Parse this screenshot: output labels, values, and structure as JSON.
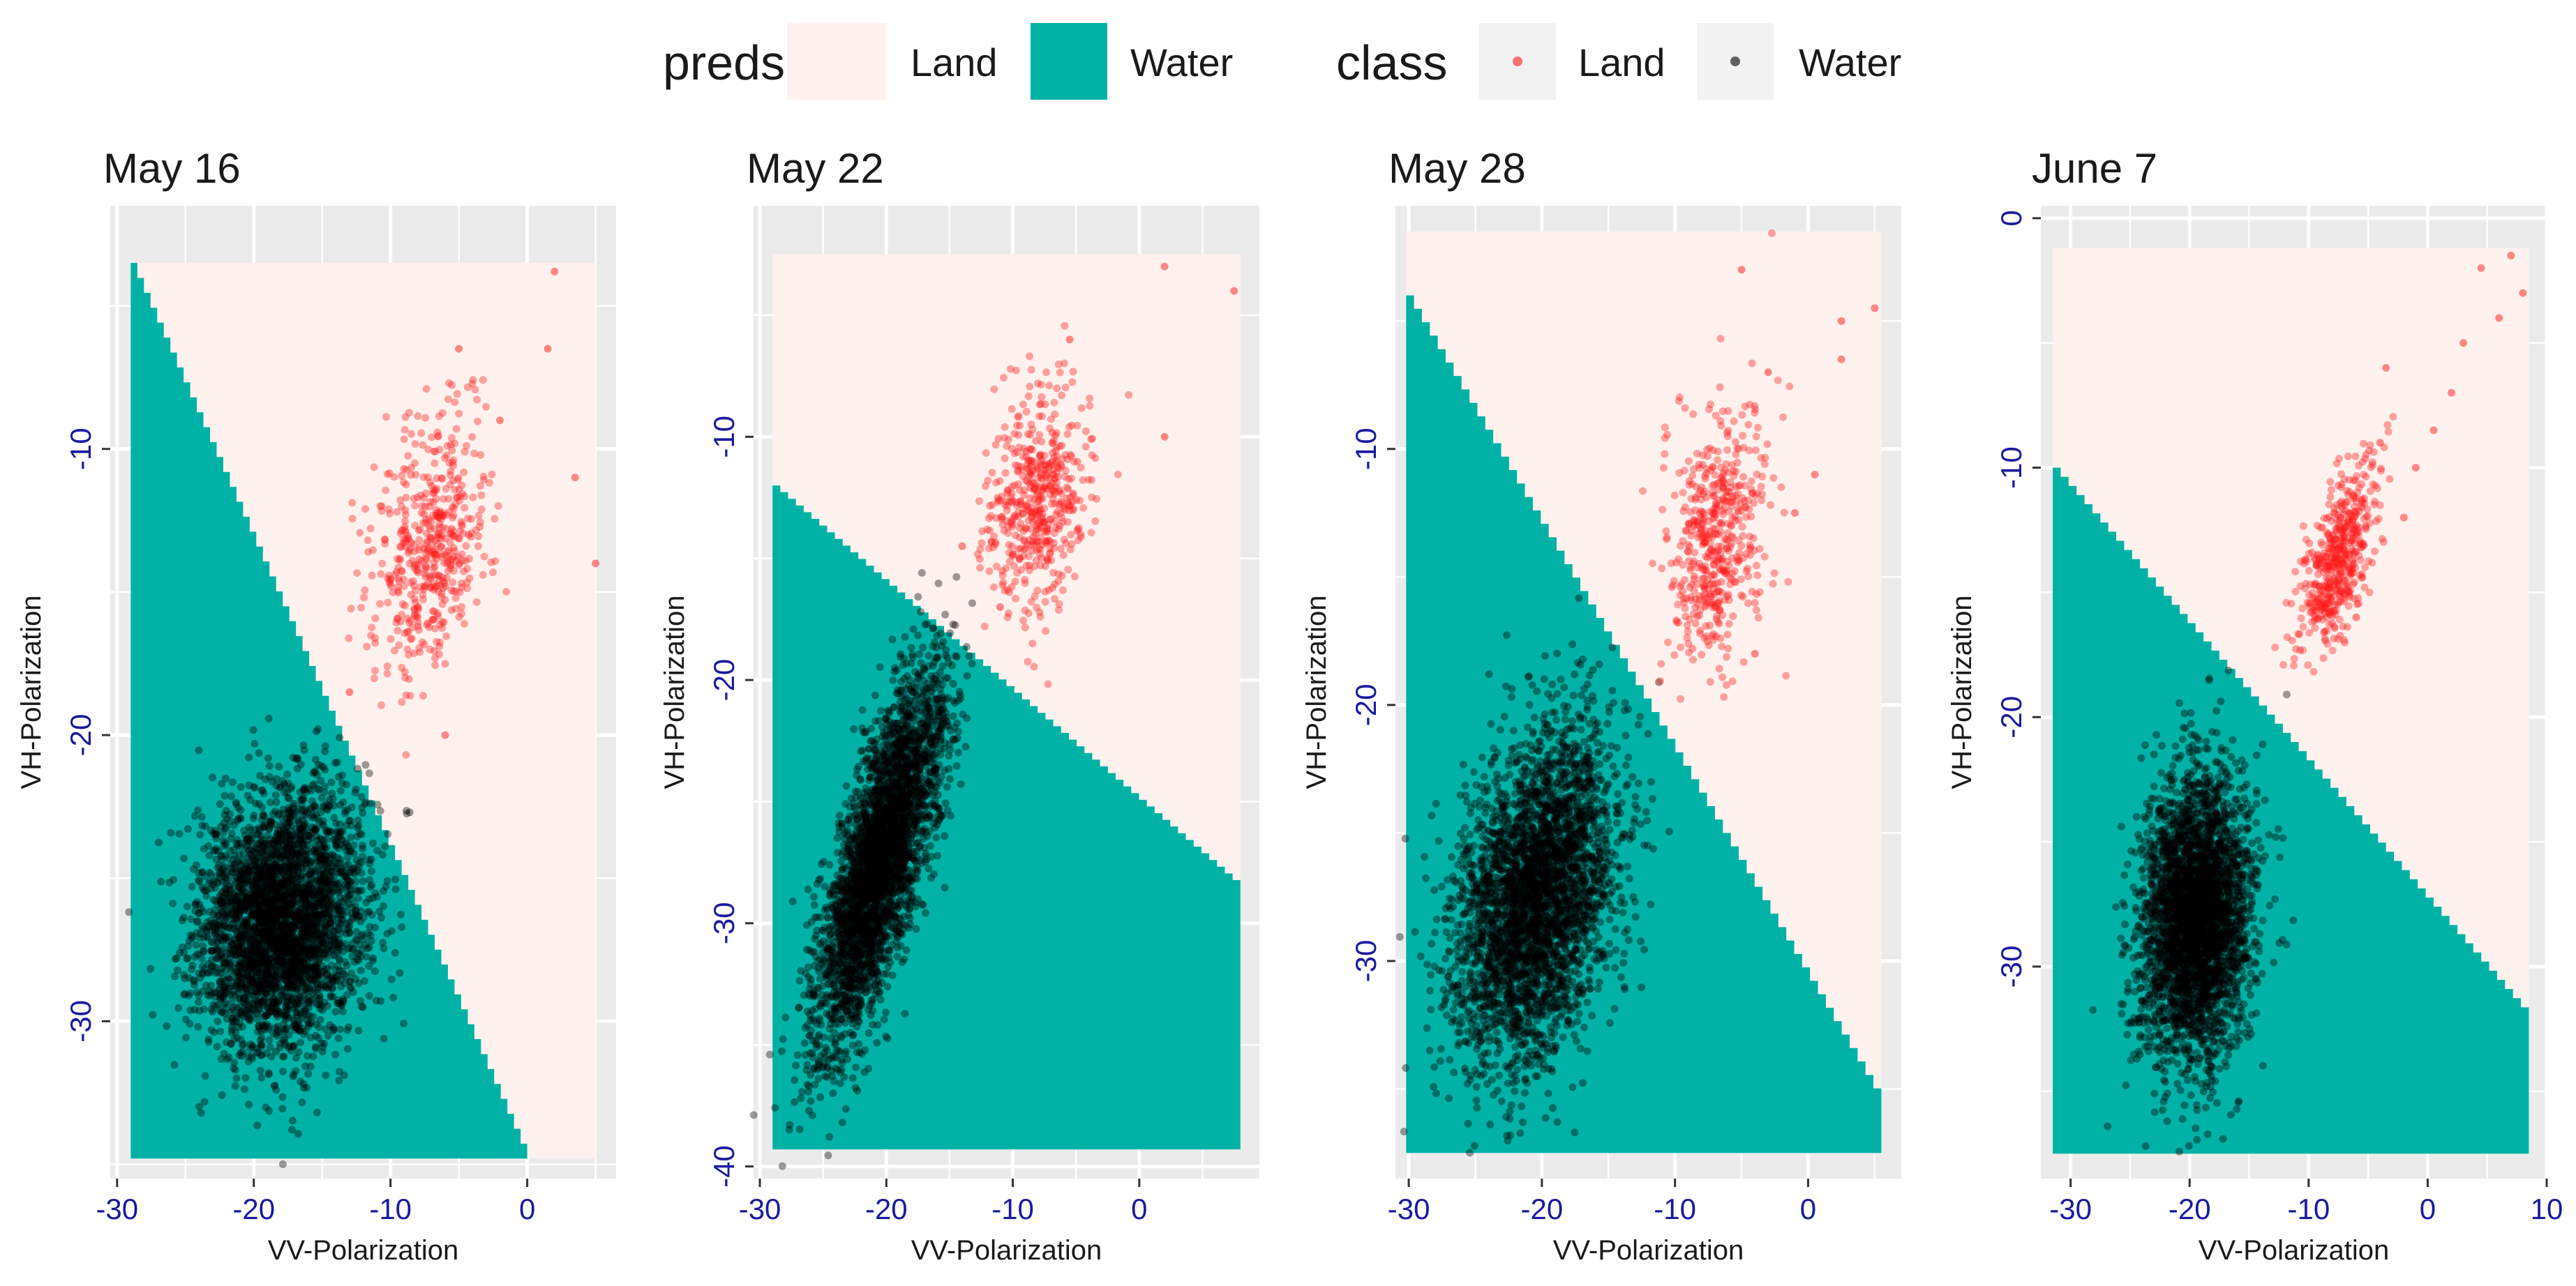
{
  "legend": {
    "preds_title": "preds",
    "preds_items": [
      {
        "label": "Land",
        "color": "#FFF2EE"
      },
      {
        "label": "Water",
        "color": "#00B2A6"
      }
    ],
    "class_title": "class",
    "class_items": [
      {
        "label": "Land",
        "color": "#FF1A1A"
      },
      {
        "label": "Water",
        "color": "#000000"
      }
    ]
  },
  "colors": {
    "panel_bg": "#EBEBEB",
    "grid": "#FFFFFF",
    "land_fill": "#FFF2EE",
    "water_fill": "#00B2A6",
    "land_point": "#FF1A1A",
    "water_point": "#000000",
    "tick_label": "#1A1AA0"
  },
  "chart_data": [
    {
      "type": "scatter",
      "title": "May 16",
      "xlabel": "VV-Polarization",
      "ylabel": "VH-Polarization",
      "xlim": [
        -30.5,
        6.5
      ],
      "ylim": [
        -35.5,
        -1.5
      ],
      "xticks": [
        -30,
        -20,
        -10,
        0
      ],
      "yticks": [
        -30,
        -20,
        -10
      ],
      "region": {
        "xmin": -29,
        "xmax": 5,
        "ymin": -34.8,
        "ymax": -3.5
      },
      "boundary": [
        [
          -29,
          -3.5
        ],
        [
          0,
          -34.8
        ]
      ],
      "land_cluster": {
        "cx": -7,
        "cy": -13.5,
        "sx": 2.2,
        "sy": 2.2,
        "rho": 0.3,
        "n": 500
      },
      "land_outliers": [
        [
          2,
          -3.8
        ],
        [
          1.5,
          -6.5
        ],
        [
          3.5,
          -11
        ],
        [
          5,
          -14
        ],
        [
          -2,
          -9
        ],
        [
          -5,
          -6.5
        ],
        [
          -6,
          -20
        ],
        [
          -13,
          -18.5
        ]
      ],
      "water_cluster": {
        "cx": -18,
        "cy": -26.5,
        "sx": 3.0,
        "sy": 2.2,
        "rho": 0.1,
        "n": 3500
      }
    },
    {
      "type": "scatter",
      "title": "May 22",
      "xlabel": "VV-Polarization",
      "ylabel": "VH-Polarization",
      "xlim": [
        -30.5,
        9.5
      ],
      "ylim": [
        -40.5,
        -0.5
      ],
      "xticks": [
        -30,
        -20,
        -10,
        0
      ],
      "yticks": [
        -40,
        -30,
        -20,
        -10
      ],
      "region": {
        "xmin": -29,
        "xmax": 8,
        "ymin": -39.3,
        "ymax": -2.5
      },
      "boundary": [
        [
          -29,
          -12
        ],
        [
          8,
          -28.5
        ]
      ],
      "land_cluster": {
        "cx": -8,
        "cy": -12.5,
        "sx": 2.0,
        "sy": 2.2,
        "rho": 0.2,
        "n": 500
      },
      "land_outliers": [
        [
          2,
          -3
        ],
        [
          7.5,
          -4
        ],
        [
          -5.5,
          -6
        ],
        [
          2,
          -10
        ],
        [
          -14,
          -14.5
        ],
        [
          -11,
          -17
        ]
      ],
      "water_cluster": {
        "cx": -20.5,
        "cy": -27.5,
        "sx": 2.5,
        "sy": 3.8,
        "rho": 0.75,
        "n": 3500
      }
    },
    {
      "type": "scatter",
      "title": "May 28",
      "xlabel": "VV-Polarization",
      "ylabel": "VH-Polarization",
      "xlim": [
        -31,
        7
      ],
      "ylim": [
        -38.5,
        -0.5
      ],
      "xticks": [
        -30,
        -20,
        -10,
        0
      ],
      "yticks": [
        -30,
        -20,
        -10
      ],
      "region": {
        "xmin": -30.2,
        "xmax": 5.5,
        "ymin": -37.5,
        "ymax": -1.5
      },
      "boundary": [
        [
          -30.2,
          -4
        ],
        [
          5.5,
          -35.5
        ]
      ],
      "land_cluster": {
        "cx": -7,
        "cy": -13.5,
        "sx": 1.8,
        "sy": 2.5,
        "rho": 0.2,
        "n": 500
      },
      "land_outliers": [
        [
          -5,
          -3
        ],
        [
          2.5,
          -5
        ],
        [
          5,
          -4.5
        ],
        [
          2.5,
          -6.5
        ],
        [
          -3,
          -7
        ],
        [
          0.5,
          -11
        ],
        [
          -1,
          -12.5
        ],
        [
          -4,
          -18
        ]
      ],
      "water_cluster": {
        "cx": -20.5,
        "cy": -27.5,
        "sx": 3.0,
        "sy": 3.2,
        "rho": 0.3,
        "n": 3500
      }
    },
    {
      "type": "scatter",
      "title": "June 7",
      "xlabel": "VV-Polarization",
      "ylabel": "VH-Polarization",
      "xlim": [
        -32.5,
        10
      ],
      "ylim": [
        -38.5,
        0.5
      ],
      "xticks": [
        -30,
        -20,
        -10,
        0,
        10
      ],
      "yticks": [
        -30,
        -20,
        -10,
        0
      ],
      "region": {
        "xmin": -31.5,
        "xmax": 8.5,
        "ymin": -37.5,
        "ymax": -1.2
      },
      "boundary": [
        [
          -31.5,
          -10
        ],
        [
          8.5,
          -32
        ]
      ],
      "land_cluster": {
        "cx": -7.5,
        "cy": -13.5,
        "sx": 1.6,
        "sy": 1.8,
        "rho": 0.6,
        "n": 500
      },
      "land_outliers": [
        [
          7,
          -1.5
        ],
        [
          8,
          -3
        ],
        [
          6,
          -4
        ],
        [
          4.5,
          -2
        ],
        [
          3,
          -5
        ],
        [
          2,
          -7
        ],
        [
          0.5,
          -8.5
        ],
        [
          -1,
          -10
        ],
        [
          -3.5,
          -6
        ],
        [
          -2,
          -12
        ],
        [
          -4,
          -9
        ],
        [
          -6,
          -16
        ]
      ],
      "water_cluster": {
        "cx": -19.5,
        "cy": -28,
        "sx": 2.3,
        "sy": 2.8,
        "rho": 0.1,
        "n": 3500
      }
    }
  ]
}
